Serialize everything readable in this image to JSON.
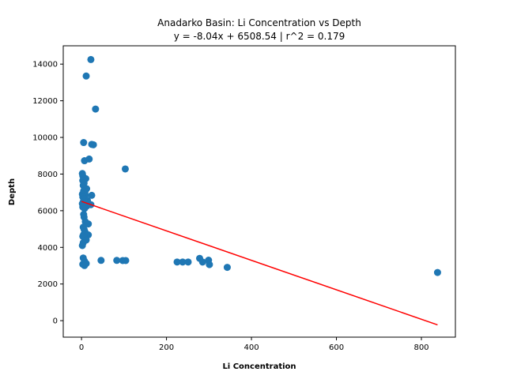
{
  "chart_data": {
    "type": "scatter",
    "title": "Anadarko Basin: Li Concentration vs Depth",
    "subtitle": "y = -8.04x + 6508.54 | r^2 = 0.179",
    "xlabel": "Li Concentration",
    "ylabel": "Depth",
    "xlim": [
      -43,
      880
    ],
    "ylim": [
      -900,
      15000
    ],
    "xticks": [
      0,
      200,
      400,
      600,
      800
    ],
    "yticks": [
      0,
      2000,
      4000,
      6000,
      8000,
      10000,
      12000,
      14000
    ],
    "grid": false,
    "colors": {
      "points": "#1f77b4",
      "fit": "#ff0000"
    },
    "fit": {
      "slope": -8.04,
      "intercept": 6508.54,
      "x_range": [
        0,
        838
      ]
    },
    "points": [
      [
        22,
        14250
      ],
      [
        11,
        13350
      ],
      [
        33,
        11550
      ],
      [
        5,
        9720
      ],
      [
        24,
        9620
      ],
      [
        28,
        9600
      ],
      [
        18,
        8820
      ],
      [
        7,
        8730
      ],
      [
        103,
        8280
      ],
      [
        2,
        8030
      ],
      [
        3,
        7900
      ],
      [
        10,
        7750
      ],
      [
        3,
        7650
      ],
      [
        6,
        7500
      ],
      [
        4,
        7380
      ],
      [
        12,
        7200
      ],
      [
        5,
        7080
      ],
      [
        8,
        7000
      ],
      [
        2,
        6900
      ],
      [
        9,
        6840
      ],
      [
        24,
        6840
      ],
      [
        3,
        6750
      ],
      [
        6,
        6650
      ],
      [
        14,
        6560
      ],
      [
        4,
        6480
      ],
      [
        10,
        6460
      ],
      [
        2,
        6380
      ],
      [
        18,
        6360
      ],
      [
        22,
        6330
      ],
      [
        5,
        6300
      ],
      [
        12,
        6250
      ],
      [
        3,
        6200
      ],
      [
        7,
        6120
      ],
      [
        5,
        5800
      ],
      [
        6,
        5650
      ],
      [
        9,
        5400
      ],
      [
        16,
        5280
      ],
      [
        4,
        5100
      ],
      [
        6,
        4980
      ],
      [
        8,
        4850
      ],
      [
        5,
        4700
      ],
      [
        16,
        4680
      ],
      [
        3,
        4600
      ],
      [
        7,
        4500
      ],
      [
        11,
        4400
      ],
      [
        4,
        4250
      ],
      [
        2,
        4100
      ],
      [
        4,
        3420
      ],
      [
        7,
        3250
      ],
      [
        46,
        3290
      ],
      [
        83,
        3290
      ],
      [
        97,
        3280
      ],
      [
        104,
        3280
      ],
      [
        11,
        3120
      ],
      [
        3,
        3080
      ],
      [
        7,
        3010
      ],
      [
        225,
        3200
      ],
      [
        238,
        3200
      ],
      [
        251,
        3200
      ],
      [
        278,
        3400
      ],
      [
        285,
        3200
      ],
      [
        299,
        3300
      ],
      [
        301,
        3060
      ],
      [
        343,
        2910
      ],
      [
        838,
        2630
      ]
    ]
  }
}
